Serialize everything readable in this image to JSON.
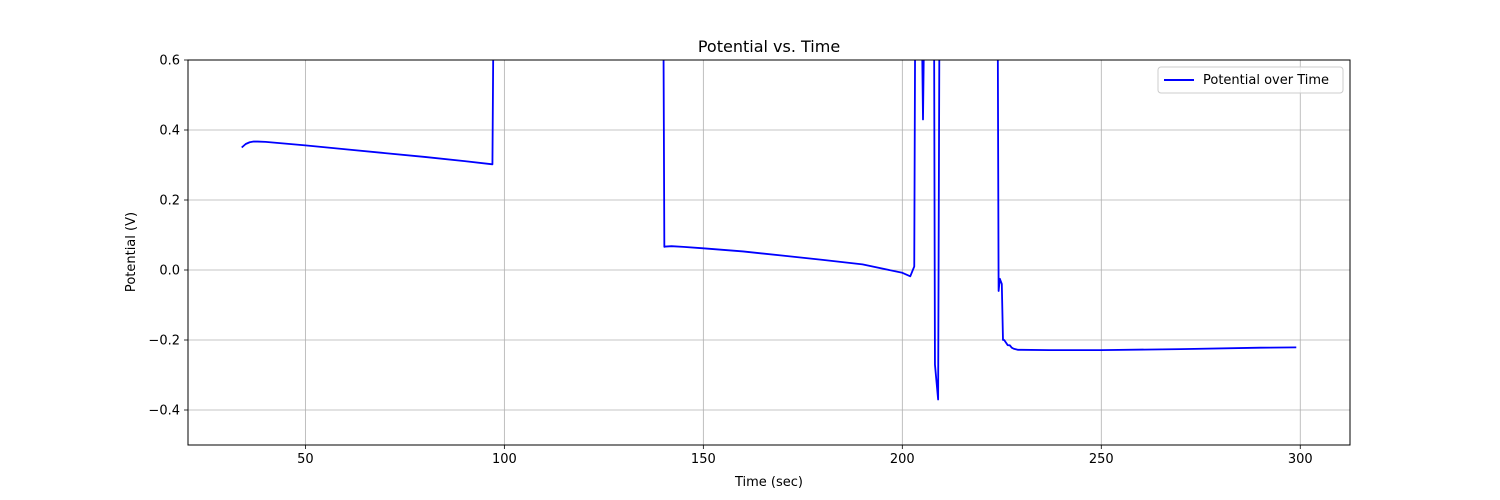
{
  "chart_data": {
    "type": "line",
    "title": "Potential vs. Time",
    "xlabel": "Time (sec)",
    "ylabel": "Potential (V)",
    "xlim": [
      20.5,
      312.5
    ],
    "ylim": [
      -0.5,
      0.6
    ],
    "xticks": [
      50,
      100,
      150,
      200,
      250,
      300
    ],
    "yticks": [
      -0.4,
      -0.2,
      0.0,
      0.2,
      0.4,
      0.6
    ],
    "xtick_labels": [
      "50",
      "100",
      "150",
      "200",
      "250",
      "300"
    ],
    "ytick_labels": [
      "−0.4",
      "−0.2",
      "0.0",
      "0.2",
      "0.4",
      "0.6"
    ],
    "grid": true,
    "legend_position": "top-right",
    "series": [
      {
        "name": "Potential over Time",
        "color": "#0000ff",
        "x": [
          34,
          35,
          36,
          37,
          38,
          40,
          50,
          60,
          70,
          80,
          90,
          97,
          97.2,
          97.4,
          140,
          140.2,
          140.5,
          142,
          145,
          150,
          160,
          170,
          180,
          190,
          200,
          202,
          203,
          203.2,
          205,
          205.2,
          205.4,
          208,
          208.2,
          209,
          209.3,
          224,
          224.2,
          224.5,
          225,
          225.3,
          225.6,
          226.5,
          227,
          227.5,
          228,
          229,
          230,
          237,
          250,
          270,
          290,
          299
        ],
        "y": [
          0.35,
          0.36,
          0.365,
          0.367,
          0.367,
          0.366,
          0.356,
          0.345,
          0.334,
          0.323,
          0.311,
          0.302,
          0.62,
          0.62,
          0.62,
          0.066,
          0.067,
          0.068,
          0.066,
          0.062,
          0.053,
          0.041,
          0.029,
          0.016,
          -0.008,
          -0.018,
          0.01,
          0.62,
          0.62,
          0.43,
          0.62,
          0.62,
          -0.27,
          -0.37,
          0.62,
          0.62,
          -0.06,
          -0.025,
          -0.04,
          -0.2,
          -0.2,
          -0.215,
          -0.215,
          -0.222,
          -0.225,
          -0.228,
          -0.228,
          -0.229,
          -0.229,
          -0.226,
          -0.222,
          -0.221
        ]
      }
    ]
  }
}
